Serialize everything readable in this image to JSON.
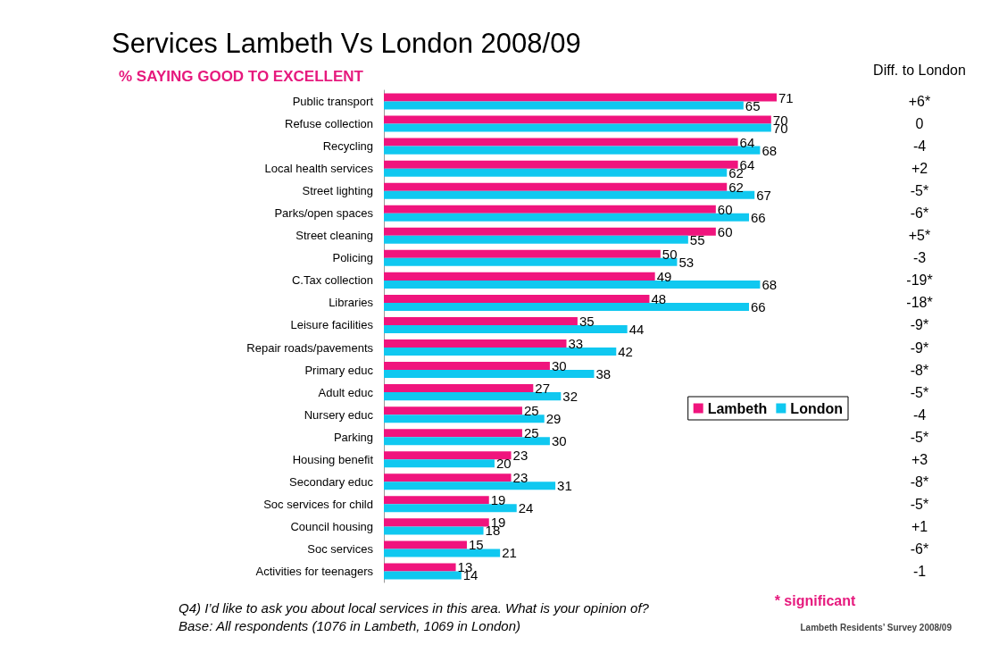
{
  "chart_data": {
    "type": "bar",
    "orientation": "horizontal",
    "title": "Services Lambeth Vs London 2008/09",
    "subtitle": "% SAYING GOOD TO EXCELLENT",
    "categories": [
      "Public transport",
      "Refuse collection",
      "Recycling",
      "Local health services",
      "Street lighting",
      "Parks/open spaces",
      "Street cleaning",
      "Policing",
      "C.Tax collection",
      "Libraries",
      "Leisure facilities",
      "Repair roads/pavements",
      "Primary educ",
      "Adult educ",
      "Nursery educ",
      "Parking",
      "Housing benefit",
      "Secondary educ",
      "Soc services for child",
      "Council housing",
      "Soc services",
      "Activities for teenagers"
    ],
    "series": [
      {
        "name": "Lambeth",
        "color": "#f0147d",
        "values": [
          71,
          70,
          64,
          64,
          62,
          60,
          60,
          50,
          49,
          48,
          35,
          33,
          30,
          27,
          25,
          25,
          23,
          23,
          19,
          19,
          15,
          13
        ]
      },
      {
        "name": "London",
        "color": "#10c8f0",
        "values": [
          65,
          70,
          68,
          62,
          67,
          66,
          55,
          53,
          68,
          66,
          44,
          42,
          38,
          32,
          29,
          30,
          20,
          31,
          24,
          18,
          21,
          14
        ]
      }
    ],
    "data_labels": true,
    "legend": "right",
    "annotations": [
      "Diff. to London",
      "+6*",
      "0",
      "-4",
      "+2",
      "-5*",
      "-6*",
      "+5*",
      "-3",
      "-19*",
      "-18*",
      "-9*",
      "-9*",
      "-8*",
      "-5*",
      "-4",
      "-5*",
      "+3",
      "-8*",
      "-5*",
      "+1",
      "-6*",
      "-1",
      "* significant",
      "Q4) I’d like to ask you about local services in this area. What is your opinion of?",
      "Base: All respondents (1076 in Lambeth, 1069 in London)",
      "Lambeth Residents’ Survey 2008/09"
    ]
  }
}
